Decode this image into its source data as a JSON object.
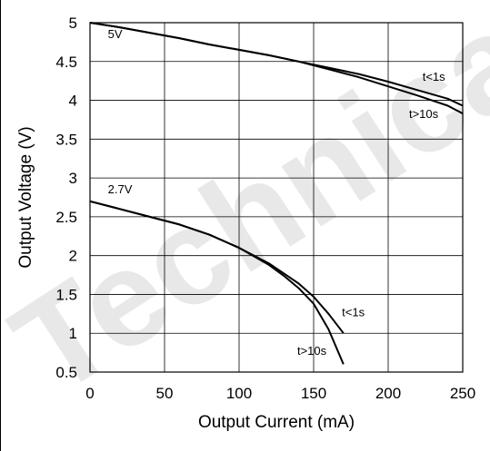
{
  "chart_data": {
    "type": "line",
    "title": "",
    "xlabel": "Output Current (mA)",
    "ylabel": "Output Voltage (V)",
    "xlim": [
      0,
      250
    ],
    "ylim": [
      0.5,
      5
    ],
    "x_ticks": [
      "0",
      "50",
      "100",
      "150",
      "200",
      "250"
    ],
    "y_ticks": [
      "0.5",
      "1",
      "1.5",
      "2",
      "2.5",
      "3",
      "3.5",
      "4",
      "4.5",
      "5"
    ],
    "grid": true,
    "watermark": "Technical",
    "series": [
      {
        "name": "t<1s",
        "group": "5V",
        "x": [
          0,
          20,
          40,
          60,
          80,
          100,
          120,
          140,
          160,
          180,
          200,
          220,
          240,
          250
        ],
        "y": [
          5.0,
          4.94,
          4.87,
          4.8,
          4.72,
          4.65,
          4.58,
          4.5,
          4.42,
          4.34,
          4.24,
          4.13,
          4.02,
          3.93
        ]
      },
      {
        "name": "t>10s",
        "group": "5V",
        "x": [
          0,
          20,
          40,
          60,
          80,
          100,
          120,
          140,
          160,
          180,
          200,
          220,
          240,
          250
        ],
        "y": [
          5.0,
          4.94,
          4.87,
          4.8,
          4.72,
          4.65,
          4.58,
          4.5,
          4.4,
          4.3,
          4.18,
          4.06,
          3.93,
          3.83
        ]
      },
      {
        "name": "t<1s",
        "group": "2.7V",
        "x": [
          0,
          20,
          40,
          60,
          80,
          100,
          120,
          130,
          140,
          150,
          160,
          170
        ],
        "y": [
          2.7,
          2.6,
          2.5,
          2.4,
          2.27,
          2.1,
          1.9,
          1.77,
          1.64,
          1.47,
          1.25,
          1.0
        ]
      },
      {
        "name": "t>10s",
        "group": "2.7V",
        "x": [
          0,
          20,
          40,
          60,
          80,
          100,
          120,
          130,
          140,
          150,
          160,
          170
        ],
        "y": [
          2.7,
          2.6,
          2.5,
          2.4,
          2.27,
          2.1,
          1.88,
          1.74,
          1.58,
          1.38,
          1.05,
          0.6
        ]
      }
    ],
    "annotations": [
      {
        "text": "5V",
        "x": 12,
        "y": 4.8
      },
      {
        "text": "2.7V",
        "x": 12,
        "y": 2.8
      },
      {
        "text": "t<1s",
        "x": 223,
        "y": 4.25
      },
      {
        "text": "t>10s",
        "x": 214,
        "y": 3.77
      },
      {
        "text": "t<1s",
        "x": 169,
        "y": 1.22
      },
      {
        "text": "t>10s",
        "x": 139,
        "y": 0.72
      }
    ]
  }
}
